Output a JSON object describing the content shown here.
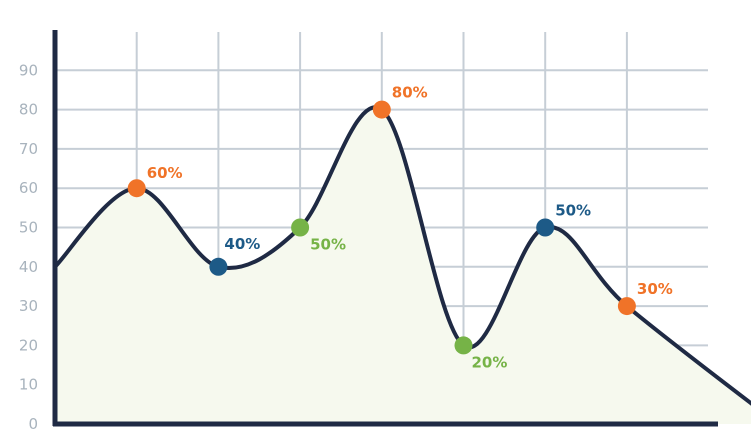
{
  "chart_data": {
    "type": "line",
    "title": "",
    "xlabel": "",
    "ylabel": "",
    "ylim": [
      0,
      100
    ],
    "yticks": [
      0,
      10,
      20,
      30,
      40,
      50,
      60,
      70,
      80,
      90
    ],
    "grid": true,
    "curve": "smooth",
    "fill": "light-green",
    "x": [
      0,
      1,
      2,
      3,
      4,
      5,
      6,
      7,
      8,
      8.85
    ],
    "values": [
      40,
      60,
      40,
      50,
      80,
      20,
      50,
      30,
      null,
      0
    ],
    "points": [
      {
        "x": 1,
        "y": 60,
        "label": "60%",
        "color": "#f07328"
      },
      {
        "x": 2,
        "y": 40,
        "label": "40%",
        "color": "#1d5a87"
      },
      {
        "x": 3,
        "y": 50,
        "label": "50%",
        "color": "#76b347"
      },
      {
        "x": 4,
        "y": 80,
        "label": "80%",
        "color": "#f07328"
      },
      {
        "x": 5,
        "y": 20,
        "label": "20%",
        "color": "#76b347"
      },
      {
        "x": 6,
        "y": 50,
        "label": "50%",
        "color": "#1d5a87"
      },
      {
        "x": 7,
        "y": 30,
        "label": "30%",
        "color": "#f07328"
      }
    ],
    "colors": {
      "line": "#1f2a44",
      "axis": "#1f2a44",
      "grid": "#c6ced6",
      "area": "#f6f9ee",
      "tick_text": "#a8b3bd"
    }
  }
}
